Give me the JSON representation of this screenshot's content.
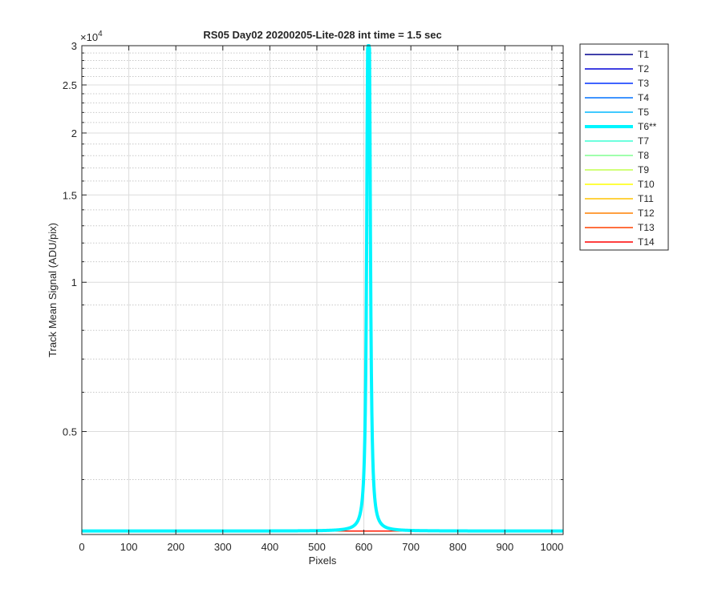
{
  "chart_data": {
    "type": "line",
    "title": "RS05 Day02 20200205-Lite-028 int time = 1.5 sec",
    "xlabel": "Pixels",
    "ylabel": "Track Mean Signal (ADU/pix)",
    "y_exponent_label": "×10",
    "y_exponent_value": "4",
    "y_scale": "log",
    "xlim": [
      0,
      1024
    ],
    "ylim": [
      3100,
      30000
    ],
    "grid": true,
    "minor_grid": true,
    "legend_position": "outside-right-top",
    "x_ticks": [
      0,
      100,
      200,
      300,
      400,
      500,
      600,
      700,
      800,
      900,
      1000
    ],
    "x_tick_labels": [
      "0",
      "100",
      "200",
      "300",
      "400",
      "500",
      "600",
      "700",
      "800",
      "900",
      "1000"
    ],
    "y_ticks": [
      5000,
      10000,
      15000,
      20000,
      25000,
      30000
    ],
    "y_tick_labels": [
      "0.5",
      "1",
      "1.5",
      "2",
      "2.5",
      "3"
    ],
    "y_minor_ticks": [
      4000,
      6000,
      7000,
      8000,
      9000,
      11000,
      12000,
      13000,
      14000,
      16000,
      17000,
      18000,
      19000,
      21000,
      22000,
      23000,
      24000,
      26000,
      27000,
      28000,
      29000
    ],
    "baseline_value": 3150,
    "series": [
      {
        "name": "T1",
        "color": "#00008f",
        "highlight": false,
        "peak": null
      },
      {
        "name": "T2",
        "color": "#0000d9",
        "highlight": false,
        "peak": null
      },
      {
        "name": "T3",
        "color": "#0030ff",
        "highlight": false,
        "peak": null
      },
      {
        "name": "T4",
        "color": "#0072ff",
        "highlight": false,
        "peak": null
      },
      {
        "name": "T5",
        "color": "#00b8ff",
        "highlight": false,
        "peak": null
      },
      {
        "name": "T6**",
        "color": "#00f5ff",
        "highlight": true,
        "peak": {
          "center": 610,
          "height": 30000,
          "halfwidth": 1.8
        }
      },
      {
        "name": "T7",
        "color": "#3dffd4",
        "highlight": false,
        "peak": null
      },
      {
        "name": "T8",
        "color": "#80ff91",
        "highlight": false,
        "peak": null
      },
      {
        "name": "T9",
        "color": "#c2ff4d",
        "highlight": false,
        "peak": null
      },
      {
        "name": "T10",
        "color": "#ffff00",
        "highlight": false,
        "peak": null
      },
      {
        "name": "T11",
        "color": "#ffc400",
        "highlight": false,
        "peak": null
      },
      {
        "name": "T12",
        "color": "#ff8000",
        "highlight": false,
        "peak": null
      },
      {
        "name": "T13",
        "color": "#ff4000",
        "highlight": false,
        "peak": null
      },
      {
        "name": "T14",
        "color": "#ff0000",
        "highlight": false,
        "peak": null
      }
    ]
  }
}
